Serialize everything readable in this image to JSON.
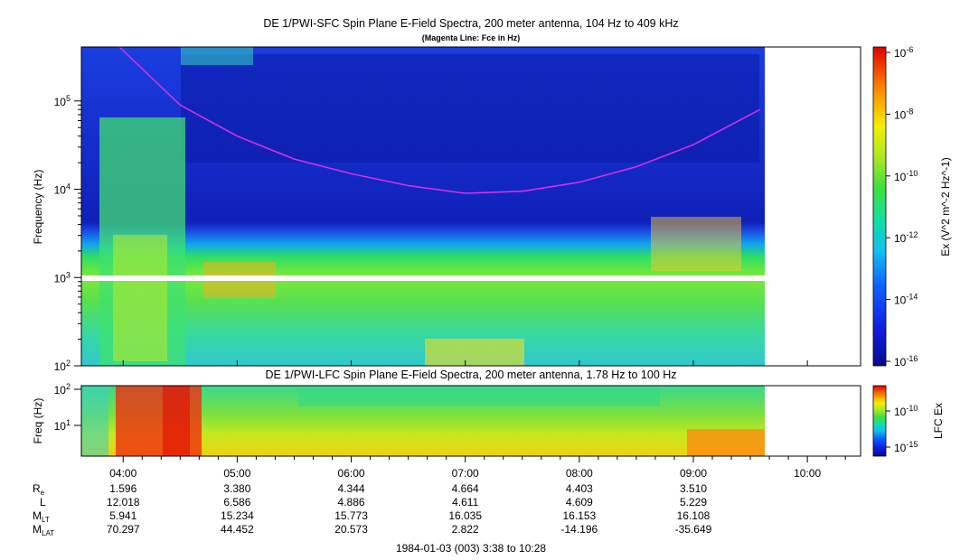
{
  "chart_data": [
    {
      "type": "heatmap",
      "title": "DE 1/PWI-SFC  Spin Plane E-Field Spectra, 200 meter antenna, 104 Hz to 409 kHz",
      "subtitle": "(Magenta Line: Fce in Hz)",
      "ylabel": "Frequency (Hz)",
      "yscale": "log",
      "ylim": [
        100,
        409000
      ],
      "y_ticks": [
        "10^2",
        "10^3",
        "10^4",
        "10^5"
      ],
      "colorbar": {
        "label": "Ex (V^2 m^-2 Hz^-1)",
        "scale": "log",
        "range": [
          1e-16,
          1e-06
        ],
        "ticks": [
          "10^-6",
          "10^-8",
          "10^-10",
          "10^-12",
          "10^-14",
          "10^-16"
        ]
      },
      "fce_line": {
        "color": "#e22ee8",
        "points": [
          {
            "time": "03:58",
            "freq_hz": 409000
          },
          {
            "time": "04:30",
            "freq_hz": 90000
          },
          {
            "time": "05:00",
            "freq_hz": 40000
          },
          {
            "time": "05:30",
            "freq_hz": 22000
          },
          {
            "time": "06:00",
            "freq_hz": 15000
          },
          {
            "time": "06:30",
            "freq_hz": 11000
          },
          {
            "time": "07:00",
            "freq_hz": 9000
          },
          {
            "time": "07:30",
            "freq_hz": 9500
          },
          {
            "time": "08:00",
            "freq_hz": 12000
          },
          {
            "time": "08:30",
            "freq_hz": 18000
          },
          {
            "time": "09:00",
            "freq_hz": 32000
          },
          {
            "time": "09:35",
            "freq_hz": 80000
          }
        ]
      }
    },
    {
      "type": "heatmap",
      "title": "DE 1/PWI-LFC  Spin Plane E-Field Spectra, 200 meter antenna, 1.78 Hz to 100 Hz",
      "ylabel": "Freq (Hz)",
      "yscale": "log",
      "y_ticks": [
        "10^2",
        "10^1"
      ],
      "colorbar": {
        "label": "LFC Ex",
        "ticks": [
          "10^-10",
          "10^-15"
        ]
      }
    }
  ],
  "x_axis": {
    "ticks": [
      "04:00",
      "05:00",
      "06:00",
      "07:00",
      "08:00",
      "09:00",
      "10:00"
    ],
    "caption": "1984-01-03 (003) 3:38 to 10:28"
  },
  "ephemeris": [
    {
      "label": "R",
      "sub": "e",
      "values": [
        "1.596",
        "3.380",
        "4.344",
        "4.664",
        "4.403",
        "3.510"
      ]
    },
    {
      "label": "L",
      "sub": "",
      "values": [
        "12.018",
        "6.586",
        "4.886",
        "4.611",
        "4.609",
        "5.229"
      ]
    },
    {
      "label": "M",
      "sub": "LT",
      "values": [
        "5.941",
        "15.234",
        "15.773",
        "16.035",
        "16.153",
        "16.108"
      ]
    },
    {
      "label": "M",
      "sub": "LAT",
      "values": [
        "70.297",
        "44.452",
        "20.573",
        "2.822",
        "-14.196",
        "-35.649"
      ]
    }
  ]
}
